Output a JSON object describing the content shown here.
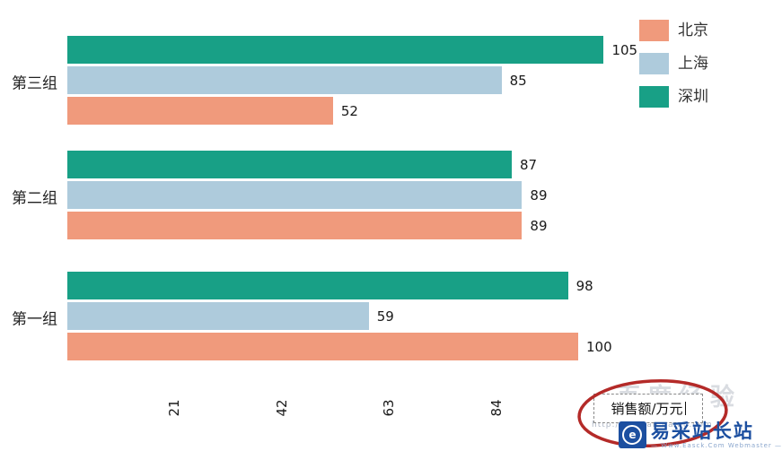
{
  "chart_data": {
    "type": "bar",
    "orientation": "horizontal",
    "title": "",
    "xlabel": "销售额/万元",
    "ylabel": "",
    "categories": [
      "第一组",
      "第二组",
      "第三组"
    ],
    "series": [
      {
        "name": "北京",
        "color": "#f09a7c",
        "values": [
          100,
          89,
          52
        ]
      },
      {
        "name": "上海",
        "color": "#aecbdc",
        "values": [
          59,
          89,
          85
        ]
      },
      {
        "name": "深圳",
        "color": "#18a086",
        "values": [
          98,
          87,
          105
        ]
      }
    ],
    "x_ticks": [
      21,
      42,
      63,
      84
    ],
    "xlim": [
      0,
      105
    ],
    "grid": false,
    "legend_position": "top-right",
    "value_labels_shown": true,
    "tick_label_rotation_deg": -90
  },
  "axis_title_box": {
    "text": "销售额/万元"
  },
  "annotation": {
    "shape": "ellipse",
    "color": "#b42a28"
  },
  "watermarks": {
    "baidu_big_text": "百度经验",
    "baidu_url": "http://jingyan.baidu.com",
    "easck_name": "易采站长站",
    "easck_subtitle": "— Www.Easck.Com Webmaster —",
    "easck_color": "#1c4fa0"
  }
}
